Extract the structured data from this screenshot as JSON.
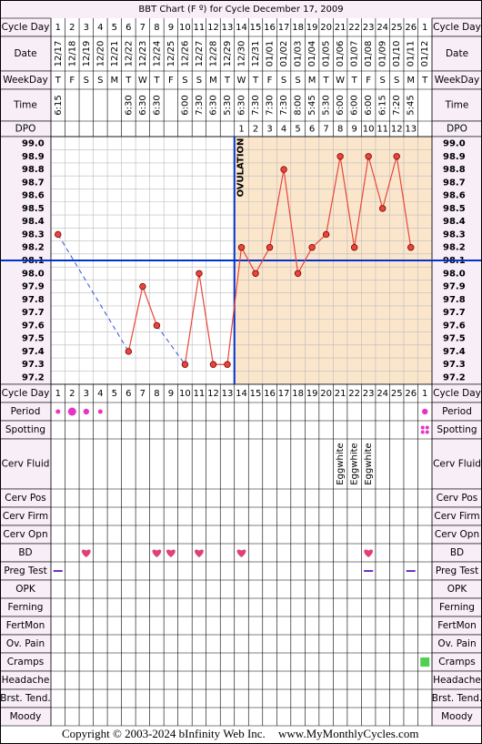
{
  "title": "BBT Chart (F º) for Cycle December 17, 2009",
  "labels": {
    "cycle_day": "Cycle Day",
    "date": "Date",
    "weekday": "WeekDay",
    "time": "Time",
    "dpo": "DPO",
    "period": "Period",
    "spotting": "Spotting",
    "cerv_fluid": "Cerv Fluid",
    "cerv_pos": "Cerv Pos",
    "cerv_firm": "Cerv Firm",
    "cerv_opn": "Cerv Opn",
    "bd": "BD",
    "preg_test": "Preg Test",
    "opk": "OPK",
    "ferning": "Ferning",
    "fertmon": "FertMon",
    "ov_pain": "Ov. Pain",
    "cramps": "Cramps",
    "headache": "Headache",
    "brst_tend": "Brst. Tend.",
    "moody": "Moody"
  },
  "cycle_days": [
    1,
    2,
    3,
    4,
    5,
    6,
    7,
    8,
    9,
    10,
    11,
    12,
    13,
    14,
    15,
    16,
    17,
    18,
    19,
    20,
    21,
    22,
    23,
    24,
    25,
    26,
    1
  ],
  "dates": [
    "12/17",
    "12/18",
    "12/19",
    "12/20",
    "12/21",
    "12/22",
    "12/23",
    "12/24",
    "12/25",
    "12/26",
    "12/27",
    "12/28",
    "12/29",
    "12/30",
    "12/31",
    "01/01",
    "01/02",
    "01/03",
    "01/04",
    "01/05",
    "01/06",
    "01/07",
    "01/08",
    "01/09",
    "01/10",
    "01/11",
    "01/12"
  ],
  "weekdays": [
    "T",
    "F",
    "S",
    "S",
    "M",
    "T",
    "W",
    "T",
    "F",
    "S",
    "S",
    "M",
    "T",
    "W",
    "T",
    "F",
    "S",
    "S",
    "M",
    "T",
    "W",
    "T",
    "F",
    "S",
    "S",
    "M",
    "T"
  ],
  "times": [
    "6:15",
    null,
    null,
    null,
    null,
    "6:30",
    "6:30",
    "6:30",
    null,
    "6:00",
    "7:30",
    "6:30",
    "5:30",
    "6:30",
    "7:30",
    "7:30",
    "7:30",
    "8:00",
    "5:45",
    "5:30",
    "6:00",
    "6:00",
    "6:00",
    "6:15",
    "7:20",
    "5:45",
    null
  ],
  "dpo": [
    null,
    null,
    null,
    null,
    null,
    null,
    null,
    null,
    null,
    null,
    null,
    null,
    null,
    1,
    2,
    3,
    4,
    5,
    6,
    7,
    8,
    9,
    10,
    11,
    12,
    13,
    null
  ],
  "chart_data": {
    "type": "line",
    "values": [
      98.3,
      null,
      null,
      null,
      null,
      97.4,
      97.9,
      97.6,
      null,
      97.3,
      98.0,
      97.3,
      97.3,
      98.2,
      98.0,
      98.2,
      98.8,
      98.0,
      98.2,
      98.3,
      98.9,
      98.2,
      98.9,
      98.5,
      98.9,
      98.2,
      null
    ],
    "color": "#e8463c",
    "ylim": [
      97.2,
      99.0
    ],
    "yticks": [
      {
        "value": 99.0,
        "label": "99.0"
      },
      98.9,
      98.8,
      98.7,
      98.6,
      98.5,
      98.4,
      98.3,
      98.2,
      98.1,
      {
        "value": 98.0,
        "label": "98.0"
      },
      97.9,
      97.8,
      97.7,
      97.6,
      97.5,
      97.4,
      97.3,
      97.2
    ],
    "coverline": 98.1,
    "ovulation_label": "OVULATION",
    "grid": true
  },
  "period": [
    "light",
    "heavy",
    "medium",
    "light",
    null,
    null,
    null,
    null,
    null,
    null,
    null,
    null,
    null,
    null,
    null,
    null,
    null,
    null,
    null,
    null,
    null,
    null,
    null,
    null,
    null,
    null,
    "medium"
  ],
  "spotting": [
    false,
    false,
    false,
    false,
    false,
    false,
    false,
    false,
    false,
    false,
    false,
    false,
    false,
    false,
    false,
    false,
    false,
    false,
    false,
    false,
    false,
    false,
    false,
    false,
    false,
    false,
    true
  ],
  "cerv_fluid": [
    null,
    null,
    null,
    null,
    null,
    null,
    null,
    null,
    null,
    null,
    null,
    null,
    null,
    null,
    null,
    null,
    null,
    null,
    null,
    null,
    "Eggwhite",
    "Eggwhite",
    "Eggwhite",
    null,
    null,
    null,
    null
  ],
  "bd": [
    false,
    false,
    true,
    false,
    false,
    false,
    false,
    true,
    true,
    false,
    true,
    false,
    false,
    true,
    false,
    false,
    false,
    false,
    false,
    false,
    false,
    false,
    true,
    false,
    false,
    false,
    false
  ],
  "preg_test": [
    true,
    false,
    false,
    false,
    false,
    false,
    false,
    false,
    false,
    false,
    false,
    false,
    false,
    false,
    false,
    false,
    false,
    false,
    false,
    false,
    false,
    false,
    true,
    false,
    false,
    true,
    false
  ],
  "cramps": [
    false,
    false,
    false,
    false,
    false,
    false,
    false,
    false,
    false,
    false,
    false,
    false,
    false,
    false,
    false,
    false,
    false,
    false,
    false,
    false,
    false,
    false,
    false,
    false,
    false,
    false,
    true
  ],
  "footer": {
    "copyright": "Copyright © 2003-2024 bInfinity Web Inc.",
    "site": "www.MyMonthlyCycles.com"
  }
}
